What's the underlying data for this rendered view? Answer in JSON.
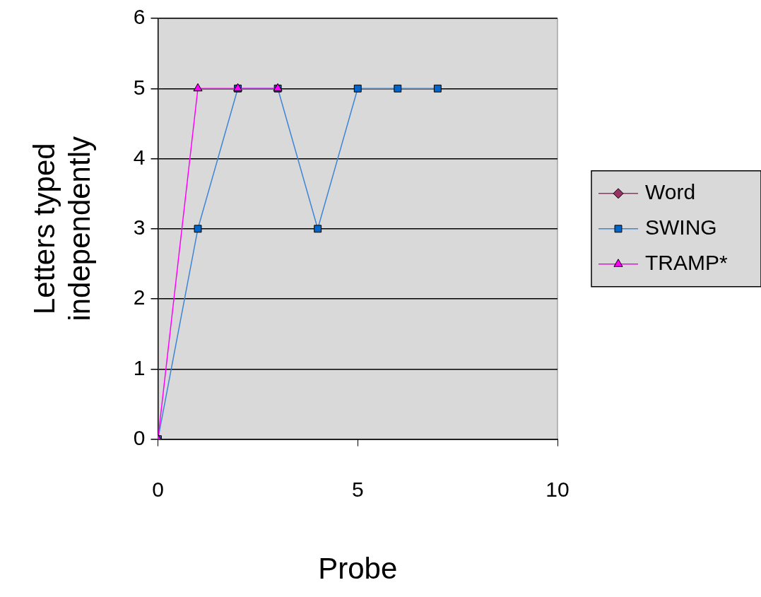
{
  "chart_data": {
    "type": "line",
    "xlabel": "Probe",
    "ylabel": "Letters typed independently",
    "xlim": [
      0,
      10
    ],
    "xticks": [
      0,
      5,
      10
    ],
    "ylim": [
      0,
      6
    ],
    "yticks": [
      0,
      1,
      2,
      3,
      4,
      5,
      6
    ],
    "grid": "y",
    "legend": "right",
    "series": [
      {
        "name": "Word",
        "color": "#993366",
        "marker": "diamond"
      },
      {
        "name": "SWING",
        "color": "#3d85d6",
        "marker": "square",
        "x": [
          0,
          1,
          2,
          3,
          4,
          5,
          6,
          7
        ],
        "values": [
          0,
          3,
          5,
          5,
          3,
          5,
          5,
          5
        ]
      },
      {
        "name": "TRAMP*",
        "color": "#ff00ff",
        "marker": "triangle",
        "x": [
          0,
          1,
          2,
          3
        ],
        "values": [
          0,
          5,
          5,
          5
        ]
      }
    ]
  }
}
